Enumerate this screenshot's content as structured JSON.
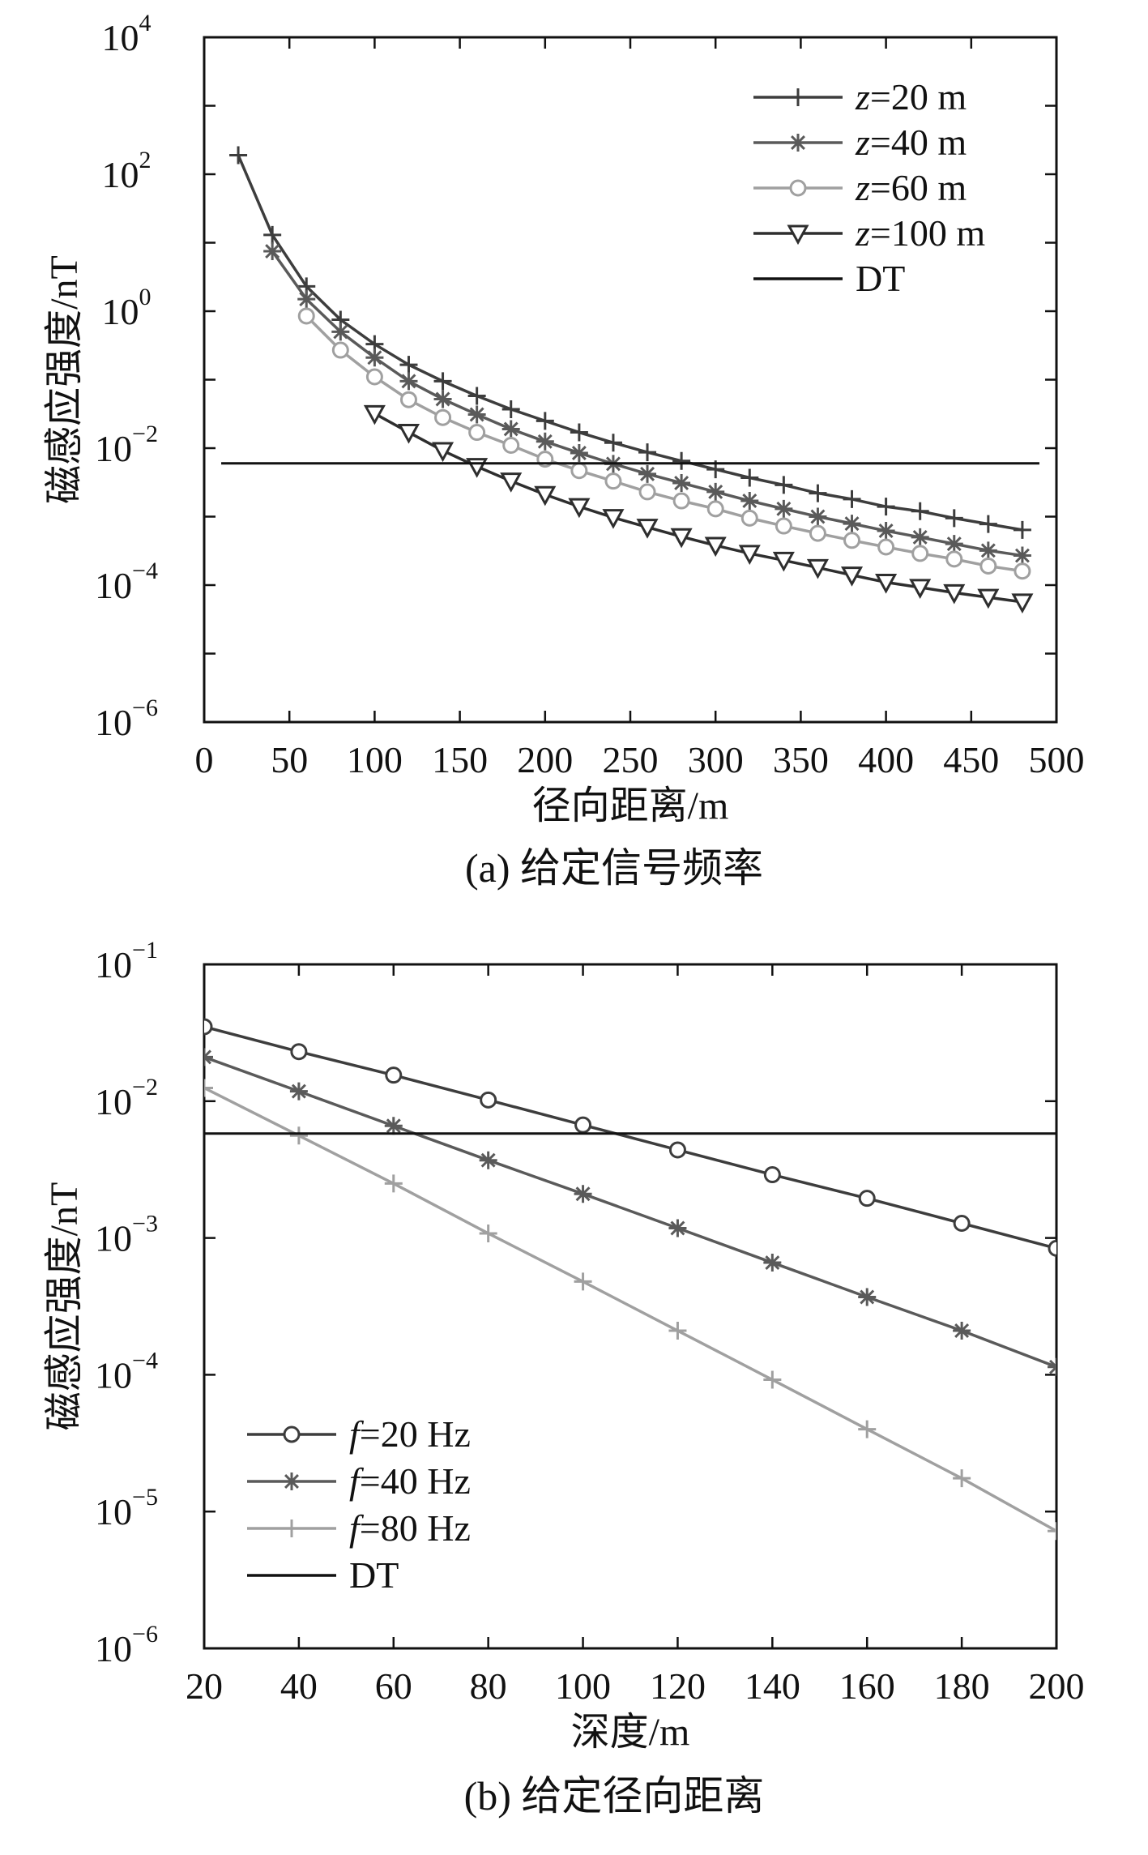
{
  "chart_data": [
    {
      "type": "line",
      "caption": "(a) 给定信号频率",
      "xlabel": "径向距离/m",
      "ylabel": "磁感应强度/nT",
      "xscale": "linear",
      "yscale": "log",
      "xlim": [
        0,
        500
      ],
      "ylim": [
        1e-06,
        10000.0
      ],
      "xticks": [
        "0",
        "50",
        "100",
        "150",
        "200",
        "250",
        "300",
        "350",
        "400",
        "450",
        "500"
      ],
      "yticks": [
        {
          "base": "10",
          "exp": "−6"
        },
        {
          "base": "10",
          "exp": "−4"
        },
        {
          "base": "10",
          "exp": "−2"
        },
        {
          "base": "10",
          "exp": "0"
        },
        {
          "base": "10",
          "exp": "2"
        },
        {
          "base": "10",
          "exp": "4"
        }
      ],
      "legend_position": "top-right",
      "series": [
        {
          "name_italic": "z",
          "name_rest": "=20 m",
          "marker": "plus",
          "color": "#3d3d3d",
          "x": [
            20,
            40,
            60,
            80,
            100,
            120,
            140,
            160,
            180,
            200,
            220,
            240,
            260,
            280,
            300,
            320,
            340,
            360,
            380,
            400,
            420,
            440,
            460,
            480
          ],
          "y": [
            190,
            13,
            2.3,
            0.75,
            0.33,
            0.165,
            0.095,
            0.058,
            0.037,
            0.025,
            0.017,
            0.012,
            0.0087,
            0.0065,
            0.0049,
            0.0037,
            0.0029,
            0.0022,
            0.0018,
            0.0014,
            0.0012,
            0.00095,
            0.00078,
            0.00064
          ]
        },
        {
          "name_italic": "z",
          "name_rest": "=40 m",
          "marker": "asterisk",
          "color": "#5a5a5a",
          "x": [
            40,
            60,
            80,
            100,
            120,
            140,
            160,
            180,
            200,
            220,
            240,
            260,
            280,
            300,
            320,
            340,
            360,
            380,
            400,
            420,
            440,
            460,
            480
          ],
          "y": [
            7.5,
            1.5,
            0.5,
            0.21,
            0.095,
            0.052,
            0.031,
            0.019,
            0.0125,
            0.0085,
            0.0059,
            0.0042,
            0.0031,
            0.0023,
            0.0017,
            0.0013,
            0.001,
            0.00079,
            0.00062,
            0.0005,
            0.0004,
            0.00032,
            0.00027
          ]
        },
        {
          "name_italic": "z",
          "name_rest": "=60 m",
          "marker": "circle",
          "color": "#a0a0a0",
          "x": [
            60,
            80,
            100,
            120,
            140,
            160,
            180,
            200,
            220,
            240,
            260,
            280,
            300,
            320,
            340,
            360,
            380,
            400,
            420,
            440,
            460,
            480
          ],
          "y": [
            0.85,
            0.27,
            0.11,
            0.051,
            0.028,
            0.017,
            0.011,
            0.0069,
            0.0047,
            0.0033,
            0.0023,
            0.0017,
            0.0013,
            0.00095,
            0.00073,
            0.00057,
            0.00045,
            0.00036,
            0.00029,
            0.00024,
            0.00019,
            0.00016
          ]
        },
        {
          "name_italic": "z",
          "name_rest": "=100 m",
          "marker": "triangle-down",
          "color": "#2e2e2e",
          "x": [
            100,
            120,
            140,
            160,
            180,
            200,
            220,
            240,
            260,
            280,
            300,
            320,
            340,
            360,
            380,
            400,
            420,
            440,
            460,
            480
          ],
          "y": [
            0.032,
            0.017,
            0.0092,
            0.0054,
            0.0033,
            0.0021,
            0.0014,
            0.00097,
            0.0007,
            0.00051,
            0.00038,
            0.00029,
            0.00023,
            0.00018,
            0.00014,
            0.00011,
            9.25e-05,
            7.75e-05,
            6.625e-05,
            5.669e-05
          ]
        },
        {
          "name_italic": "",
          "name_rest": "DT",
          "marker": "none",
          "color": "#111111",
          "x": [
            10,
            490
          ],
          "y": [
            0.006,
            0.006
          ]
        }
      ]
    },
    {
      "type": "line",
      "caption": "(b) 给定径向距离",
      "xlabel": "深度/m",
      "ylabel": "磁感应强度/nT",
      "xscale": "linear",
      "yscale": "log",
      "xlim": [
        20,
        200
      ],
      "ylim": [
        1e-06,
        0.1
      ],
      "xticks": [
        "20",
        "40",
        "60",
        "80",
        "100",
        "120",
        "140",
        "160",
        "180",
        "200"
      ],
      "yticks": [
        {
          "base": "10",
          "exp": "−6"
        },
        {
          "base": "10",
          "exp": "−5"
        },
        {
          "base": "10",
          "exp": "−4"
        },
        {
          "base": "10",
          "exp": "−3"
        },
        {
          "base": "10",
          "exp": "−2"
        },
        {
          "base": "10",
          "exp": "−1"
        }
      ],
      "legend_position": "bottom-left",
      "series": [
        {
          "name_italic": "f",
          "name_rest": "=20 Hz",
          "marker": "circle",
          "color": "#3d3d3d",
          "x": [
            20,
            40,
            60,
            80,
            100,
            120,
            140,
            160,
            180,
            200
          ],
          "y": [
            0.035,
            0.023,
            0.0155,
            0.0102,
            0.0067,
            0.0044,
            0.0029,
            0.00195,
            0.00128,
            0.00084
          ]
        },
        {
          "name_italic": "f",
          "name_rest": "=40 Hz",
          "marker": "asterisk",
          "color": "#5a5a5a",
          "x": [
            20,
            40,
            60,
            80,
            100,
            120,
            140,
            160,
            180,
            200
          ],
          "y": [
            0.021,
            0.0118,
            0.0066,
            0.0037,
            0.0021,
            0.00118,
            0.00066,
            0.00037,
            0.00021,
            0.000114
          ]
        },
        {
          "name_italic": "f",
          "name_rest": "=80 Hz",
          "marker": "plus",
          "color": "#a0a0a0",
          "x": [
            20,
            40,
            60,
            80,
            100,
            120,
            140,
            160,
            180,
            200
          ],
          "y": [
            0.0125,
            0.0056,
            0.0025,
            0.00108,
            0.00048,
            0.00021,
            9.2e-05,
            4e-05,
            1.75e-05,
            7.2e-06
          ]
        },
        {
          "name_italic": "",
          "name_rest": "DT",
          "marker": "none",
          "color": "#111111",
          "x": [
            20,
            200
          ],
          "y": [
            0.0058,
            0.0058
          ]
        }
      ]
    }
  ]
}
